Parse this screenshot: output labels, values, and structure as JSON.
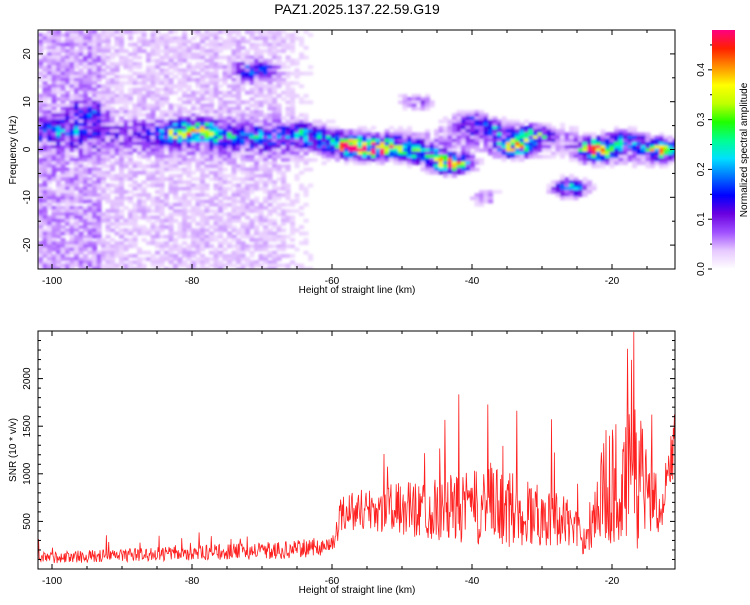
{
  "title": "PAZ1.2025.137.22.59.G19",
  "chart_data": [
    {
      "type": "heatmap",
      "xlabel": "Height of straight line (km)",
      "ylabel": "Frequency (Hz)",
      "xlim": [
        -102,
        -11
      ],
      "ylim": [
        -25,
        25
      ],
      "xticks": [
        -100,
        -80,
        -60,
        -40,
        -20
      ],
      "yticks": [
        -20,
        -10,
        0,
        10,
        20
      ],
      "colorbar": {
        "label": "Normalized spectral amplitude",
        "range": [
          0.0,
          0.48
        ],
        "ticks": [
          0.0,
          0.1,
          0.2,
          0.3,
          0.4
        ],
        "colormap": [
          "#ffffff",
          "#e6c8ff",
          "#a050ff",
          "#6a00e0",
          "#0000ff",
          "#0070ff",
          "#00e0ff",
          "#00ff90",
          "#20ff00",
          "#c0ff00",
          "#ffff00",
          "#ff9000",
          "#ff2000",
          "#ff0080"
        ]
      },
      "blobs": [
        {
          "x": -82,
          "y": 3.5,
          "v": 0.22
        },
        {
          "x": -79,
          "y": 4.5,
          "v": 0.16
        },
        {
          "x": -76,
          "y": 3,
          "v": 0.15
        },
        {
          "x": -71,
          "y": 2.5,
          "v": 0.12
        },
        {
          "x": -65,
          "y": 3.5,
          "v": 0.14
        },
        {
          "x": -61,
          "y": 2,
          "v": 0.12
        },
        {
          "x": -57,
          "y": 0.5,
          "v": 0.42
        },
        {
          "x": -54,
          "y": 0,
          "v": 0.3
        },
        {
          "x": -51,
          "y": 0.5,
          "v": 0.22
        },
        {
          "x": -47,
          "y": -1,
          "v": 0.2
        },
        {
          "x": -43,
          "y": -3,
          "v": 0.44
        },
        {
          "x": -40,
          "y": 6,
          "v": 0.12
        },
        {
          "x": -37,
          "y": 4,
          "v": 0.14
        },
        {
          "x": -34,
          "y": 0.5,
          "v": 0.28
        },
        {
          "x": -31,
          "y": 3,
          "v": 0.2
        },
        {
          "x": -26,
          "y": -8,
          "v": 0.2
        },
        {
          "x": -22,
          "y": 0,
          "v": 0.44
        },
        {
          "x": -18,
          "y": 2,
          "v": 0.15
        },
        {
          "x": -13,
          "y": 0,
          "v": 0.28
        },
        {
          "x": -71,
          "y": 16.5,
          "v": 0.14
        },
        {
          "x": -95,
          "y": 8,
          "v": 0.1
        },
        {
          "x": -98,
          "y": 4,
          "v": 0.08
        },
        {
          "x": -48,
          "y": 10,
          "v": 0.08
        },
        {
          "x": -38,
          "y": -10,
          "v": 0.06
        }
      ]
    },
    {
      "type": "line",
      "xlabel": "Height of straight line (km)",
      "ylabel": "SNR (10 * v/v)",
      "xlim": [
        -102,
        -11
      ],
      "ylim": [
        0,
        2500
      ],
      "xticks": [
        -100,
        -80,
        -60,
        -40,
        -20
      ],
      "yticks": [
        500,
        1000,
        1500,
        2000
      ],
      "color": "#ff2020",
      "envelope": [
        {
          "x": -102,
          "base": 110,
          "amp": 110
        },
        {
          "x": -80,
          "base": 160,
          "amp": 140
        },
        {
          "x": -66,
          "base": 190,
          "amp": 170
        },
        {
          "x": -60,
          "base": 240,
          "amp": 180
        },
        {
          "x": -58.5,
          "base": 600,
          "amp": 380
        },
        {
          "x": -45,
          "base": 600,
          "amp": 600
        },
        {
          "x": -36,
          "base": 600,
          "amp": 800
        },
        {
          "x": -27,
          "base": 500,
          "amp": 500
        },
        {
          "x": -24,
          "base": 300,
          "amp": 300
        },
        {
          "x": -21,
          "base": 800,
          "amp": 1100
        },
        {
          "x": -16,
          "base": 900,
          "amp": 1400
        },
        {
          "x": -13,
          "base": 600,
          "amp": 400
        },
        {
          "x": -11,
          "base": 1300,
          "amp": 600
        }
      ],
      "points": 1100
    }
  ]
}
